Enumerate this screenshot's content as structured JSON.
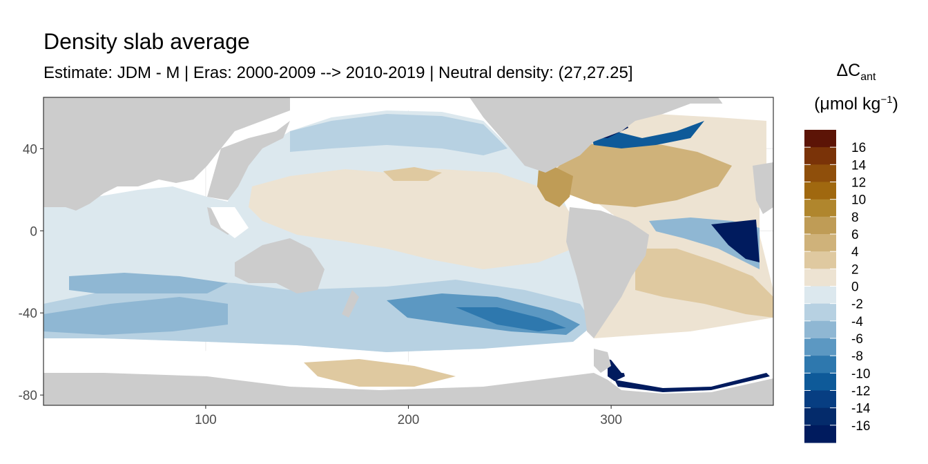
{
  "title": "Density slab average",
  "subtitle": "Estimate: JDM - M | Eras: 2000-2009 --> 2010-2019 | Neutral density: (27,27.25]",
  "legend": {
    "title_symbol": "ΔC",
    "title_subscript": "ant",
    "unit_open": "(μmol kg",
    "unit_sup": "−1",
    "unit_close": ")"
  },
  "chart_data": {
    "type": "heatmap",
    "title": "Density slab average",
    "subtitle": "Estimate: JDM - M | Eras: 2000-2009 --> 2010-2019 | Neutral density: (27,27.25]",
    "xlabel": "",
    "ylabel": "",
    "xlim": [
      20,
      380
    ],
    "ylim": [
      -85,
      65
    ],
    "x_ticks": [
      100,
      200,
      300
    ],
    "y_ticks": [
      40,
      0,
      -40,
      -80
    ],
    "grid": true,
    "land_color": "#cccccc",
    "no_data_color": "#ffffff",
    "legend_position": "right",
    "color_scale": {
      "labels": [
        "16",
        "14",
        "12",
        "10",
        "8",
        "6",
        "4",
        "2",
        "0",
        "-2",
        "-4",
        "-6",
        "-8",
        "-10",
        "-12",
        "-14",
        "-16"
      ],
      "colors": [
        "#5c1406",
        "#7a3308",
        "#8f4f0b",
        "#a0680f",
        "#b0862d",
        "#bf9c56",
        "#cfb27a",
        "#dfc9a0",
        "#ede3d2",
        "#dce8ee",
        "#b7d1e2",
        "#8fb7d3",
        "#5c98c2",
        "#2e78ae",
        "#0e5a99",
        "#073e82",
        "#042b6b",
        "#001b5e"
      ]
    }
  }
}
